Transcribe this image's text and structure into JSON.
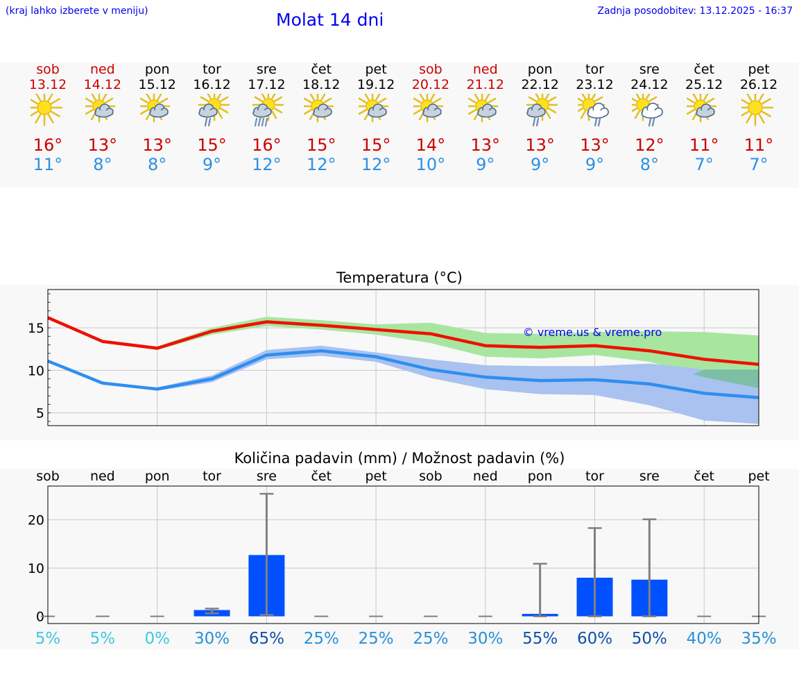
{
  "header": {
    "hint": "(kraj lahko izberete v meniju)",
    "title": "Molat 14 dni",
    "updated": "Zadnja posodobitev: 13.12.2025 - 16:37"
  },
  "days": [
    {
      "name": "sob",
      "date": "13.12",
      "weekend": true,
      "icon": "sun-icon",
      "max": "16°",
      "min": "11°"
    },
    {
      "name": "ned",
      "date": "14.12",
      "weekend": true,
      "icon": "sun-cloud-icon",
      "max": "13°",
      "min": "8°"
    },
    {
      "name": "pon",
      "date": "15.12",
      "weekend": false,
      "icon": "sun-cloud-icon",
      "max": "13°",
      "min": "8°"
    },
    {
      "name": "tor",
      "date": "16.12",
      "weekend": false,
      "icon": "sun-cloud-light-rain-icon",
      "max": "15°",
      "min": "9°"
    },
    {
      "name": "sre",
      "date": "17.12",
      "weekend": false,
      "icon": "sun-cloud-heavy-rain-icon",
      "max": "16°",
      "min": "12°"
    },
    {
      "name": "čet",
      "date": "18.12",
      "weekend": false,
      "icon": "sun-cloud-icon",
      "max": "15°",
      "min": "12°"
    },
    {
      "name": "pet",
      "date": "19.12",
      "weekend": false,
      "icon": "sun-cloud-icon",
      "max": "15°",
      "min": "12°"
    },
    {
      "name": "sob",
      "date": "20.12",
      "weekend": true,
      "icon": "sun-cloud-icon",
      "max": "14°",
      "min": "10°"
    },
    {
      "name": "ned",
      "date": "21.12",
      "weekend": true,
      "icon": "sun-cloud-icon",
      "max": "13°",
      "min": "9°"
    },
    {
      "name": "pon",
      "date": "22.12",
      "weekend": false,
      "icon": "sun-cloud-light-rain-icon",
      "max": "13°",
      "min": "9°"
    },
    {
      "name": "tor",
      "date": "23.12",
      "weekend": false,
      "icon": "sun-big-cloud-rain-icon",
      "max": "13°",
      "min": "9°"
    },
    {
      "name": "sre",
      "date": "24.12",
      "weekend": false,
      "icon": "sun-big-cloud-rain-icon",
      "max": "12°",
      "min": "8°"
    },
    {
      "name": "čet",
      "date": "25.12",
      "weekend": false,
      "icon": "sun-cloud-icon",
      "max": "11°",
      "min": "7°"
    },
    {
      "name": "pet",
      "date": "26.12",
      "weekend": false,
      "icon": "sun-icon",
      "max": "11°",
      "min": "7°"
    }
  ],
  "colors": {
    "weekend": "#cc0000",
    "max_line": "#ee1100",
    "min_line": "#2e8ef0",
    "max_band": "#a8e6a0",
    "min_band": "#a9c2f0",
    "overlap_band": "#7dbfa4",
    "bar": "#0050ff",
    "errbar": "#808080"
  },
  "chart_data": [
    {
      "type": "line",
      "title": "Temperatura (°C)",
      "watermark": "© vreme.us & vreme.pro",
      "x": [
        0,
        1,
        2,
        3,
        4,
        5,
        6,
        7,
        8,
        9,
        10,
        11,
        12,
        13
      ],
      "ylim": [
        3.5,
        19.5
      ],
      "yticks": [
        5,
        10,
        15
      ],
      "series": [
        {
          "name": "max",
          "values": [
            16.2,
            13.4,
            12.6,
            14.6,
            15.7,
            15.3,
            14.8,
            14.3,
            12.9,
            12.7,
            12.9,
            12.3,
            11.3,
            10.7
          ],
          "band_low": [
            16.2,
            13.4,
            12.4,
            14.2,
            15.2,
            14.8,
            14.2,
            13.2,
            11.6,
            11.4,
            11.8,
            11.0,
            9.2,
            7.9
          ],
          "band_high": [
            16.2,
            13.4,
            12.8,
            15.0,
            16.3,
            15.9,
            15.4,
            15.6,
            14.4,
            14.3,
            14.5,
            14.6,
            14.5,
            14.1
          ]
        },
        {
          "name": "min",
          "values": [
            11.1,
            8.5,
            7.8,
            9.0,
            11.8,
            12.3,
            11.6,
            10.1,
            9.2,
            8.8,
            8.9,
            8.4,
            7.3,
            6.8
          ],
          "band_low": [
            11.1,
            8.5,
            7.6,
            8.6,
            11.3,
            11.7,
            11.0,
            9.1,
            7.8,
            7.2,
            7.1,
            5.9,
            4.1,
            3.7
          ],
          "band_high": [
            11.1,
            8.5,
            8.0,
            9.4,
            12.4,
            12.9,
            12.1,
            11.3,
            10.6,
            10.5,
            10.5,
            10.8,
            10.1,
            10.1
          ]
        }
      ]
    },
    {
      "type": "bar",
      "title": "Količina padavin (mm) / Možnost padavin (%)",
      "categories": [
        "sob",
        "ned",
        "pon",
        "tor",
        "sre",
        "čet",
        "pet",
        "sob",
        "ned",
        "pon",
        "tor",
        "sre",
        "čet",
        "pet"
      ],
      "values": [
        0,
        0,
        0,
        1.3,
        12.7,
        0,
        0,
        0,
        0,
        0.5,
        8.0,
        7.6,
        0,
        0
      ],
      "err_low": [
        0,
        0,
        0,
        0.6,
        0.3,
        0,
        0,
        0,
        0,
        0,
        0,
        0,
        0,
        0
      ],
      "err_high": [
        0,
        0,
        0,
        1.6,
        25.4,
        0,
        0,
        0,
        0,
        10.9,
        18.3,
        20.1,
        0,
        0
      ],
      "probability": [
        "5%",
        "5%",
        "0%",
        "30%",
        "65%",
        "25%",
        "25%",
        "25%",
        "30%",
        "55%",
        "60%",
        "50%",
        "40%",
        "35%"
      ],
      "probability_values": [
        5,
        5,
        0,
        30,
        65,
        25,
        25,
        25,
        30,
        55,
        60,
        50,
        40,
        35
      ],
      "ylim": [
        -1.5,
        27
      ],
      "yticks": [
        0,
        10,
        20
      ]
    }
  ]
}
